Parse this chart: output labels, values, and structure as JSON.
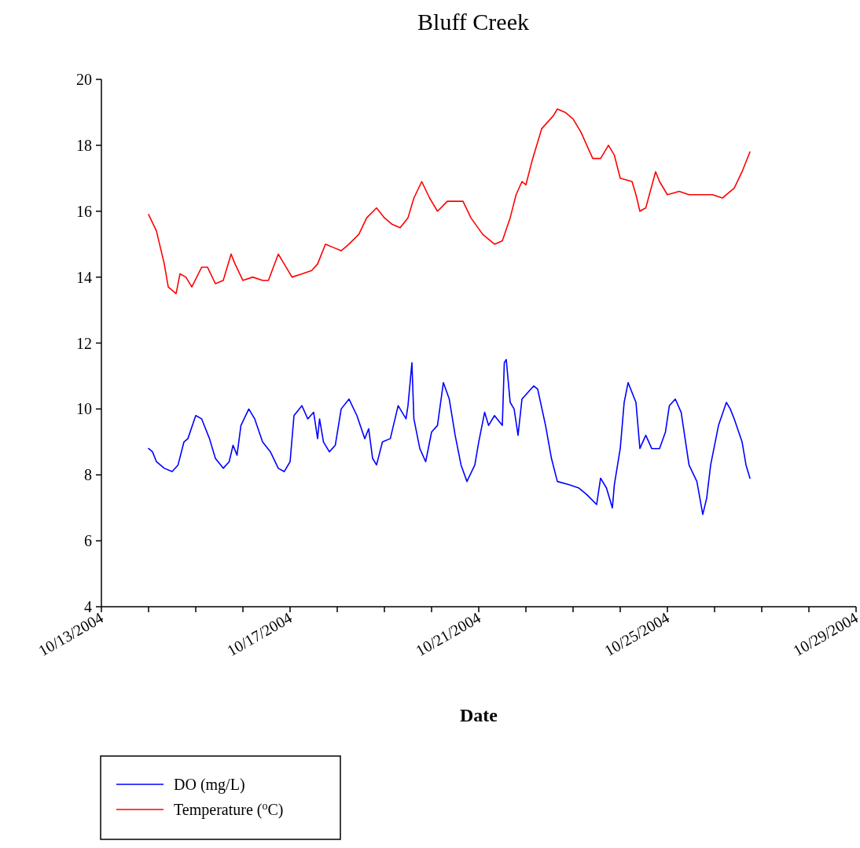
{
  "chart_data": {
    "type": "line",
    "title": "Bluff Creek",
    "xlabel": "Date",
    "legend": "bottom left",
    "grid": false,
    "xlim": [
      "2004-10-13",
      "2004-10-29"
    ],
    "xticks": [
      {
        "value": "2004-10-13",
        "label": "10/13/2004"
      },
      {
        "value": "2004-10-14",
        "label": null
      },
      {
        "value": "2004-10-15",
        "label": null
      },
      {
        "value": "2004-10-16",
        "label": null
      },
      {
        "value": "2004-10-17",
        "label": "10/17/2004"
      },
      {
        "value": "2004-10-18",
        "label": null
      },
      {
        "value": "2004-10-19",
        "label": null
      },
      {
        "value": "2004-10-20",
        "label": null
      },
      {
        "value": "2004-10-21",
        "label": "10/21/2004"
      },
      {
        "value": "2004-10-22",
        "label": null
      },
      {
        "value": "2004-10-23",
        "label": null
      },
      {
        "value": "2004-10-24",
        "label": null
      },
      {
        "value": "2004-10-25",
        "label": "10/25/2004"
      },
      {
        "value": "2004-10-26",
        "label": null
      },
      {
        "value": "2004-10-27",
        "label": null
      },
      {
        "value": "2004-10-28",
        "label": null
      },
      {
        "value": "2004-10-29",
        "label": "10/29/2004"
      }
    ],
    "ylim": [
      4,
      20
    ],
    "yticks": [
      4,
      6,
      8,
      10,
      12,
      14,
      16,
      18,
      20
    ],
    "series": [
      {
        "name": "DO (mg/L)",
        "color": "#0000ff",
        "x": [
          "2004-10-14T00:00",
          "2004-10-14T02:00",
          "2004-10-14T04:00",
          "2004-10-14T08:00",
          "2004-10-14T12:00",
          "2004-10-14T15:00",
          "2004-10-14T18:00",
          "2004-10-14T20:00",
          "2004-10-15T00:00",
          "2004-10-15T03:00",
          "2004-10-15T07:00",
          "2004-10-15T10:00",
          "2004-10-15T14:00",
          "2004-10-15T17:00",
          "2004-10-15T19:00",
          "2004-10-15T21:00",
          "2004-10-15T23:00",
          "2004-10-16T03:00",
          "2004-10-16T06:00",
          "2004-10-16T10:00",
          "2004-10-16T14:00",
          "2004-10-16T18:00",
          "2004-10-16T21:00",
          "2004-10-17T00:00",
          "2004-10-17T02:00",
          "2004-10-17T06:00",
          "2004-10-17T09:00",
          "2004-10-17T12:00",
          "2004-10-17T14:00",
          "2004-10-17T15:00",
          "2004-10-17T17:00",
          "2004-10-17T20:00",
          "2004-10-17T23:00",
          "2004-10-18T02:00",
          "2004-10-18T06:00",
          "2004-10-18T10:00",
          "2004-10-18T14:00",
          "2004-10-18T16:00",
          "2004-10-18T18:00",
          "2004-10-18T20:00",
          "2004-10-18T23:00",
          "2004-10-19T03:00",
          "2004-10-19T07:00",
          "2004-10-19T11:00",
          "2004-10-19T12:00",
          "2004-10-19T14:00",
          "2004-10-19T15:00",
          "2004-10-19T18:00",
          "2004-10-19T21:00",
          "2004-10-20T00:00",
          "2004-10-20T03:00",
          "2004-10-20T06:00",
          "2004-10-20T09:00",
          "2004-10-20T12:00",
          "2004-10-20T15:00",
          "2004-10-20T18:00",
          "2004-10-20T22:00",
          "2004-10-21T00:00",
          "2004-10-21T03:00",
          "2004-10-21T05:00",
          "2004-10-21T08:00",
          "2004-10-21T12:00",
          "2004-10-21T13:00",
          "2004-10-21T14:00",
          "2004-10-21T16:00",
          "2004-10-21T18:00",
          "2004-10-21T20:00",
          "2004-10-21T22:00",
          "2004-10-22T04:00",
          "2004-10-22T06:00",
          "2004-10-22T10:00",
          "2004-10-22T13:00",
          "2004-10-22T16:00",
          "2004-10-22T22:00",
          "2004-10-23T03:00",
          "2004-10-23T07:00",
          "2004-10-23T12:00",
          "2004-10-23T14:00",
          "2004-10-23T17:00",
          "2004-10-23T20:00",
          "2004-10-23T21:00",
          "2004-10-24T00:00",
          "2004-10-24T02:00",
          "2004-10-24T04:00",
          "2004-10-24T08:00",
          "2004-10-24T10:00",
          "2004-10-24T13:00",
          "2004-10-24T16:00",
          "2004-10-24T20:00",
          "2004-10-24T23:00",
          "2004-10-25T01:00",
          "2004-10-25T04:00",
          "2004-10-25T07:00",
          "2004-10-25T11:00",
          "2004-10-25T15:00",
          "2004-10-25T18:00",
          "2004-10-25T20:00",
          "2004-10-25T22:00",
          "2004-10-26T02:00",
          "2004-10-26T06:00",
          "2004-10-26T08:00",
          "2004-10-26T10:00",
          "2004-10-26T14:00",
          "2004-10-26T16:00",
          "2004-10-26T18:00"
        ],
        "values": [
          8.8,
          8.7,
          8.4,
          8.2,
          8.1,
          8.3,
          9.0,
          9.1,
          9.8,
          9.7,
          9.1,
          8.5,
          8.2,
          8.4,
          8.9,
          8.6,
          9.5,
          10.0,
          9.7,
          9.0,
          8.7,
          8.2,
          8.1,
          8.4,
          9.8,
          10.1,
          9.7,
          9.9,
          9.1,
          9.7,
          9.0,
          8.7,
          8.9,
          10.0,
          10.3,
          9.8,
          9.1,
          9.4,
          8.5,
          8.3,
          9.0,
          9.1,
          10.1,
          9.7,
          10.1,
          11.4,
          9.7,
          8.8,
          8.4,
          9.3,
          9.5,
          10.8,
          10.3,
          9.2,
          8.3,
          7.8,
          8.3,
          9.0,
          9.9,
          9.5,
          9.8,
          9.5,
          11.4,
          11.5,
          10.2,
          10.0,
          9.2,
          10.3,
          10.7,
          10.6,
          9.5,
          8.5,
          7.8,
          7.7,
          7.6,
          7.4,
          7.1,
          7.9,
          7.6,
          7.0,
          7.7,
          8.8,
          10.2,
          10.8,
          10.2,
          8.8,
          9.2,
          8.8,
          8.8,
          9.3,
          10.1,
          10.3,
          9.9,
          8.3,
          7.8,
          6.8,
          7.3,
          8.3,
          9.5,
          10.2,
          10.0,
          9.7,
          9.0,
          8.3,
          7.9
        ]
      },
      {
        "name": "Temperature ($^{o}$C)",
        "color": "#ff0000",
        "x": [
          "2004-10-14T00:00",
          "2004-10-14T04:00",
          "2004-10-14T08:00",
          "2004-10-14T10:00",
          "2004-10-14T14:00",
          "2004-10-14T16:00",
          "2004-10-14T19:00",
          "2004-10-14T22:00",
          "2004-10-15T03:00",
          "2004-10-15T06:00",
          "2004-10-15T10:00",
          "2004-10-15T14:00",
          "2004-10-15T18:00",
          "2004-10-15T20:00",
          "2004-10-16T00:00",
          "2004-10-16T05:00",
          "2004-10-16T10:00",
          "2004-10-16T13:00",
          "2004-10-16T18:00",
          "2004-10-16T20:00",
          "2004-10-17T01:00",
          "2004-10-17T06:00",
          "2004-10-17T11:00",
          "2004-10-17T14:00",
          "2004-10-17T18:00",
          "2004-10-17T22:00",
          "2004-10-18T02:00",
          "2004-10-18T06:00",
          "2004-10-18T11:00",
          "2004-10-18T15:00",
          "2004-10-18T20:00",
          "2004-10-19T00:00",
          "2004-10-19T04:00",
          "2004-10-19T08:00",
          "2004-10-19T12:00",
          "2004-10-19T15:00",
          "2004-10-19T19:00",
          "2004-10-19T23:00",
          "2004-10-20T03:00",
          "2004-10-20T08:00",
          "2004-10-20T16:00",
          "2004-10-20T20:00",
          "2004-10-21T02:00",
          "2004-10-21T08:00",
          "2004-10-21T12:00",
          "2004-10-21T16:00",
          "2004-10-21T19:00",
          "2004-10-21T22:00",
          "2004-10-22T00:00",
          "2004-10-22T03:00",
          "2004-10-22T06:00",
          "2004-10-22T08:00",
          "2004-10-22T14:00",
          "2004-10-22T16:00",
          "2004-10-22T20:00",
          "2004-10-23T00:00",
          "2004-10-23T04:00",
          "2004-10-23T10:00",
          "2004-10-23T14:00",
          "2004-10-23T18:00",
          "2004-10-23T21:00",
          "2004-10-24T00:00",
          "2004-10-24T06:00",
          "2004-10-24T08:00",
          "2004-10-24T10:00",
          "2004-10-24T13:00",
          "2004-10-24T18:00",
          "2004-10-24T20:00",
          "2004-10-25T00:00",
          "2004-10-25T06:00",
          "2004-10-25T11:00",
          "2004-10-25T18:00",
          "2004-10-25T23:00",
          "2004-10-26T04:00",
          "2004-10-26T10:00",
          "2004-10-26T14:00",
          "2004-10-26T18:00"
        ],
        "values": [
          15.9,
          15.4,
          14.4,
          13.7,
          13.5,
          14.1,
          14.0,
          13.7,
          14.3,
          14.3,
          13.8,
          13.9,
          14.7,
          14.4,
          13.9,
          14.0,
          13.9,
          13.9,
          14.7,
          14.5,
          14.0,
          14.1,
          14.2,
          14.4,
          15.0,
          14.9,
          14.8,
          15.0,
          15.3,
          15.8,
          16.1,
          15.8,
          15.6,
          15.5,
          15.8,
          16.4,
          16.9,
          16.4,
          16.0,
          16.3,
          16.3,
          15.8,
          15.3,
          15.0,
          15.1,
          15.8,
          16.5,
          16.9,
          16.8,
          17.5,
          18.1,
          18.5,
          18.9,
          19.1,
          19.0,
          18.8,
          18.4,
          17.6,
          17.6,
          18.0,
          17.7,
          17.0,
          16.9,
          16.5,
          16.0,
          16.1,
          17.2,
          16.9,
          16.5,
          16.6,
          16.5,
          16.5,
          16.5,
          16.4,
          16.7,
          17.2,
          17.8
        ]
      }
    ]
  }
}
